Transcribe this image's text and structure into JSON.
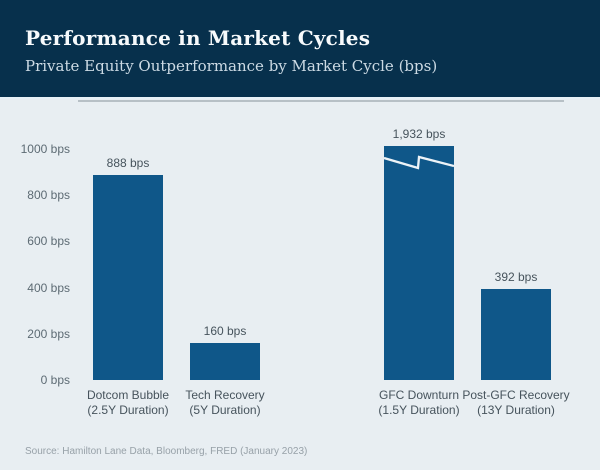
{
  "header": {
    "title": "Performance in Market Cycles",
    "subtitle": "Private Equity Outperformance by Market Cycle (bps)"
  },
  "chart_data": {
    "type": "bar",
    "title": "Performance in Market Cycles",
    "subtitle": "Private Equity Outperformance by Market Cycle (bps)",
    "unit": "bps",
    "ylim": [
      0,
      1000
    ],
    "grid": false,
    "legend": false,
    "axis_break_on_bar": "GFC Downturn",
    "y_ticks": [
      {
        "value": 1000,
        "label": "1000 bps"
      },
      {
        "value": 800,
        "label": "800 bps"
      },
      {
        "value": 600,
        "label": "600 bps"
      },
      {
        "value": 400,
        "label": "400 bps"
      },
      {
        "value": 200,
        "label": "200 bps"
      },
      {
        "value": 0,
        "label": "0 bps"
      }
    ],
    "bars": [
      {
        "category": "Dotcom Bubble",
        "duration": "(2.5Y Duration)",
        "value": 888,
        "value_label": "888 bps",
        "truncated": false
      },
      {
        "category": "Tech Recovery",
        "duration": "(5Y Duration)",
        "value": 160,
        "value_label": "160 bps",
        "truncated": false
      },
      {
        "category": "GFC Downturn",
        "duration": "(1.5Y Duration)",
        "value": 1932,
        "value_label": "1,932 bps",
        "truncated": true
      },
      {
        "category": "Post-GFC Recovery",
        "duration": "(13Y Duration)",
        "value": 392,
        "value_label": "392 bps",
        "truncated": false
      }
    ]
  },
  "source": "Source: Hamilton Lane Data, Bloomberg, FRED (January 2023)",
  "colors": {
    "header_bg": "#07304c",
    "page_bg": "#e8eef2",
    "bar": "#0f5789",
    "axis_line": "#b7c0c6",
    "tick_text": "#5d6b74",
    "value_text": "#46535c",
    "source_text": "#97a1a8",
    "break_line": "#edf3f7"
  }
}
